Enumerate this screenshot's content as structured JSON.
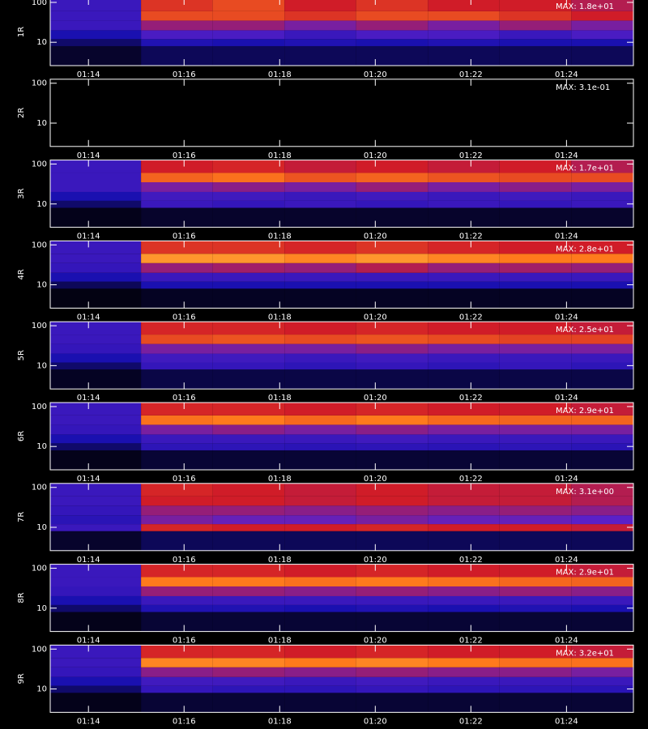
{
  "chart_data": {
    "type": "heatmap",
    "xlim": [
      73.2,
      85.4
    ],
    "xticks": [
      {
        "value": 74,
        "label": "01:14"
      },
      {
        "value": 76,
        "label": "01:16"
      },
      {
        "value": 78,
        "label": "01:18"
      },
      {
        "value": 80,
        "label": "01:20"
      },
      {
        "value": 82,
        "label": "01:22"
      },
      {
        "value": 84,
        "label": "01:24"
      }
    ],
    "ylim": [
      2.6,
      126
    ],
    "yticks": [
      10,
      100
    ],
    "log_y": true,
    "colormap": [
      "#000000",
      "#1a10b0",
      "#5a20c8",
      "#d01c28",
      "#ff7a1c",
      "#ffe860"
    ],
    "x_edges": [
      73.2,
      75.1,
      76.6,
      78.1,
      79.6,
      81.1,
      82.6,
      84.1,
      85.4
    ],
    "y_edges": [
      2.6,
      8,
      12,
      20,
      35,
      60,
      126
    ],
    "panels": [
      {
        "name": "1R",
        "max_label": "MAX: 1.8e+01",
        "values": [
          [
            0.05,
            0.1,
            0.1,
            0.1,
            0.1,
            0.1,
            0.1,
            0.1
          ],
          [
            0.12,
            0.22,
            0.2,
            0.22,
            0.2,
            0.22,
            0.2,
            0.2
          ],
          [
            0.2,
            0.35,
            0.35,
            0.3,
            0.35,
            0.35,
            0.3,
            0.35
          ],
          [
            0.3,
            0.5,
            0.5,
            0.45,
            0.5,
            0.45,
            0.5,
            0.45
          ],
          [
            0.3,
            0.7,
            0.7,
            0.65,
            0.7,
            0.7,
            0.65,
            0.6
          ],
          [
            0.3,
            0.65,
            0.7,
            0.6,
            0.65,
            0.6,
            0.6,
            0.55
          ]
        ]
      },
      {
        "name": "2R",
        "max_label": "MAX: 3.1e-01",
        "values": [
          [
            0,
            0,
            0,
            0,
            0,
            0,
            0,
            0
          ],
          [
            0,
            0,
            0,
            0,
            0,
            0,
            0,
            0
          ],
          [
            0,
            0,
            0,
            0,
            0,
            0,
            0,
            0
          ],
          [
            0,
            0,
            0,
            0,
            0,
            0,
            0,
            0
          ],
          [
            0,
            0,
            0,
            0,
            0,
            0,
            0,
            0
          ],
          [
            0,
            0,
            0,
            0,
            0,
            0,
            0,
            0
          ]
        ]
      },
      {
        "name": "3R",
        "max_label": "MAX: 1.7e+01",
        "values": [
          [
            0.03,
            0.05,
            0.05,
            0.05,
            0.05,
            0.05,
            0.05,
            0.05
          ],
          [
            0.12,
            0.3,
            0.28,
            0.3,
            0.28,
            0.3,
            0.28,
            0.3
          ],
          [
            0.2,
            0.32,
            0.32,
            0.3,
            0.32,
            0.3,
            0.32,
            0.3
          ],
          [
            0.3,
            0.45,
            0.48,
            0.45,
            0.5,
            0.45,
            0.48,
            0.45
          ],
          [
            0.3,
            0.75,
            0.78,
            0.72,
            0.75,
            0.72,
            0.7,
            0.7
          ],
          [
            0.3,
            0.6,
            0.62,
            0.58,
            0.6,
            0.58,
            0.6,
            0.55
          ]
        ]
      },
      {
        "name": "4R",
        "max_label": "MAX: 2.8e+01",
        "values": [
          [
            0.02,
            0.04,
            0.04,
            0.04,
            0.04,
            0.04,
            0.04,
            0.04
          ],
          [
            0.1,
            0.2,
            0.2,
            0.2,
            0.2,
            0.2,
            0.2,
            0.2
          ],
          [
            0.2,
            0.3,
            0.3,
            0.3,
            0.3,
            0.3,
            0.3,
            0.3
          ],
          [
            0.28,
            0.5,
            0.52,
            0.5,
            0.55,
            0.5,
            0.52,
            0.5
          ],
          [
            0.3,
            0.85,
            0.85,
            0.82,
            0.85,
            0.82,
            0.8,
            0.8
          ],
          [
            0.3,
            0.65,
            0.65,
            0.62,
            0.65,
            0.62,
            0.6,
            0.6
          ]
        ]
      },
      {
        "name": "5R",
        "max_label": "MAX: 2.5e+01",
        "values": [
          [
            0.04,
            0.08,
            0.08,
            0.08,
            0.08,
            0.08,
            0.08,
            0.08
          ],
          [
            0.12,
            0.28,
            0.28,
            0.26,
            0.28,
            0.26,
            0.28,
            0.26
          ],
          [
            0.2,
            0.32,
            0.32,
            0.3,
            0.32,
            0.3,
            0.3,
            0.3
          ],
          [
            0.28,
            0.45,
            0.45,
            0.45,
            0.48,
            0.45,
            0.45,
            0.45
          ],
          [
            0.3,
            0.7,
            0.72,
            0.7,
            0.72,
            0.7,
            0.68,
            0.68
          ],
          [
            0.3,
            0.62,
            0.62,
            0.6,
            0.62,
            0.6,
            0.6,
            0.58
          ]
        ]
      },
      {
        "name": "6R",
        "max_label": "MAX: 2.9e+01",
        "values": [
          [
            0.03,
            0.06,
            0.06,
            0.06,
            0.06,
            0.06,
            0.06,
            0.06
          ],
          [
            0.12,
            0.26,
            0.26,
            0.25,
            0.26,
            0.25,
            0.26,
            0.25
          ],
          [
            0.2,
            0.3,
            0.3,
            0.3,
            0.32,
            0.3,
            0.3,
            0.3
          ],
          [
            0.28,
            0.45,
            0.48,
            0.45,
            0.48,
            0.45,
            0.45,
            0.45
          ],
          [
            0.3,
            0.78,
            0.8,
            0.76,
            0.8,
            0.76,
            0.75,
            0.75
          ],
          [
            0.3,
            0.62,
            0.62,
            0.6,
            0.62,
            0.6,
            0.6,
            0.58
          ]
        ]
      },
      {
        "name": "7R",
        "max_label": "MAX: 3.1e+00",
        "values": [
          [
            0.05,
            0.1,
            0.1,
            0.1,
            0.1,
            0.1,
            0.1,
            0.1
          ],
          [
            0.3,
            0.62,
            0.6,
            0.6,
            0.62,
            0.6,
            0.6,
            0.58
          ],
          [
            0.25,
            0.45,
            0.42,
            0.42,
            0.45,
            0.42,
            0.42,
            0.4
          ],
          [
            0.28,
            0.5,
            0.5,
            0.48,
            0.5,
            0.48,
            0.5,
            0.48
          ],
          [
            0.3,
            0.6,
            0.6,
            0.58,
            0.6,
            0.58,
            0.58,
            0.55
          ],
          [
            0.3,
            0.62,
            0.6,
            0.58,
            0.6,
            0.58,
            0.58,
            0.55
          ]
        ]
      },
      {
        "name": "8R",
        "max_label": "MAX: 2.9e+01",
        "values": [
          [
            0.03,
            0.06,
            0.06,
            0.06,
            0.06,
            0.06,
            0.06,
            0.06
          ],
          [
            0.12,
            0.22,
            0.22,
            0.2,
            0.22,
            0.2,
            0.22,
            0.2
          ],
          [
            0.2,
            0.3,
            0.3,
            0.3,
            0.3,
            0.3,
            0.3,
            0.3
          ],
          [
            0.28,
            0.5,
            0.5,
            0.48,
            0.5,
            0.48,
            0.5,
            0.48
          ],
          [
            0.3,
            0.8,
            0.8,
            0.78,
            0.8,
            0.78,
            0.76,
            0.75
          ],
          [
            0.3,
            0.62,
            0.62,
            0.6,
            0.62,
            0.6,
            0.6,
            0.58
          ]
        ]
      },
      {
        "name": "9R",
        "max_label": "MAX: 3.2e+01",
        "values": [
          [
            0.03,
            0.06,
            0.06,
            0.06,
            0.06,
            0.06,
            0.06,
            0.06
          ],
          [
            0.12,
            0.28,
            0.26,
            0.26,
            0.28,
            0.26,
            0.26,
            0.25
          ],
          [
            0.2,
            0.32,
            0.32,
            0.3,
            0.32,
            0.3,
            0.3,
            0.3
          ],
          [
            0.28,
            0.48,
            0.5,
            0.48,
            0.5,
            0.48,
            0.48,
            0.45
          ],
          [
            0.3,
            0.82,
            0.82,
            0.8,
            0.82,
            0.8,
            0.78,
            0.78
          ],
          [
            0.3,
            0.62,
            0.62,
            0.6,
            0.62,
            0.6,
            0.6,
            0.58
          ]
        ]
      }
    ]
  }
}
